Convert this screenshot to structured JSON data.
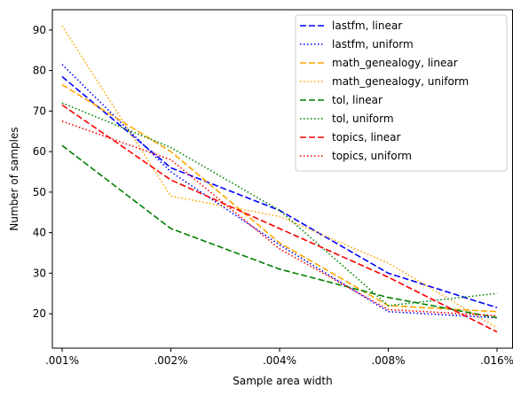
{
  "chart_data": {
    "type": "line",
    "xlabel": "Sample area width",
    "ylabel": "Number of samples",
    "categories": [
      ".001%",
      ".002%",
      ".004%",
      ".008%",
      ".016%"
    ],
    "yticks": [
      "20",
      "30",
      "40",
      "50",
      "60",
      "70",
      "80",
      "90"
    ],
    "ylim": [
      11.5,
      95
    ],
    "grid": false,
    "legend_position": "top-right",
    "series": [
      {
        "name": "lastfm, linear",
        "color": "#0000ff",
        "dash": "dashed",
        "values": [
          78.5,
          56,
          45.5,
          30,
          21.5
        ]
      },
      {
        "name": "lastfm, uniform",
        "color": "#0000ff",
        "dash": "dotted",
        "values": [
          81.5,
          55,
          37,
          20.5,
          19
        ]
      },
      {
        "name": "math_genealogy, linear",
        "color": "#ffa500",
        "dash": "dashed",
        "values": [
          76.5,
          60,
          37.5,
          22,
          20.5
        ]
      },
      {
        "name": "math_genealogy, uniform",
        "color": "#ffa500",
        "dash": "dotted",
        "values": [
          91,
          49,
          44,
          32.5,
          16.5
        ]
      },
      {
        "name": "tol, linear",
        "color": "#008000",
        "dash": "dashed",
        "values": [
          61.5,
          41,
          31,
          24,
          19
        ]
      },
      {
        "name": "tol, uniform",
        "color": "#008000",
        "dash": "dotted",
        "values": [
          72,
          61,
          45.5,
          22,
          25
        ]
      },
      {
        "name": "topics, linear",
        "color": "#ff0000",
        "dash": "dashed",
        "values": [
          71.5,
          53,
          41,
          29,
          15.5
        ]
      },
      {
        "name": "topics, uniform",
        "color": "#ff0000",
        "dash": "dotted",
        "values": [
          67.5,
          58,
          36,
          21,
          19.5
        ]
      }
    ]
  }
}
